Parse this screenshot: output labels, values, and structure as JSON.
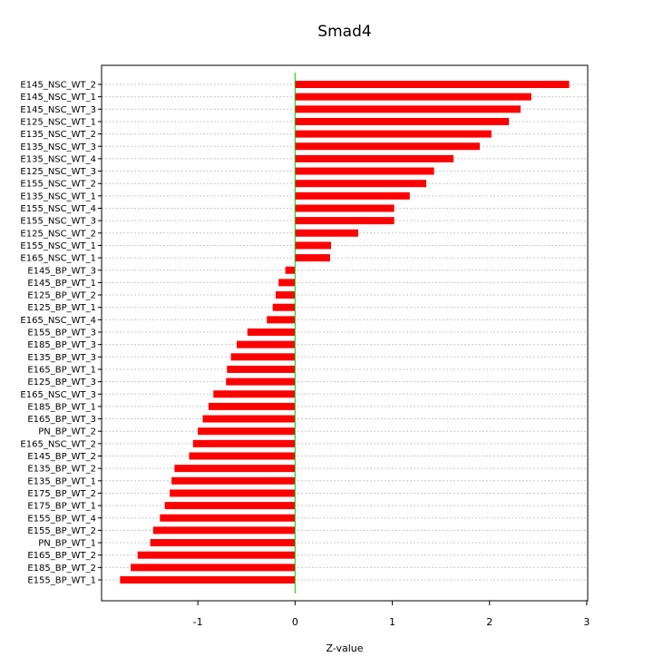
{
  "chart_data": {
    "type": "bar",
    "orientation": "horizontal",
    "title": "Smad4",
    "xlabel": "Z-value",
    "ylabel": "",
    "xlim": [
      -1.99,
      3.01
    ],
    "xticks": [
      -1,
      0,
      1,
      2,
      3
    ],
    "grid": "horizontal dashed",
    "legend": "none",
    "colors": {
      "bar": "#ff0000",
      "zero_line": "#00cc00",
      "grid": "#c8c8c8",
      "frame": "#000000"
    },
    "categories": [
      "E145_NSC_WT_2",
      "E145_NSC_WT_1",
      "E145_NSC_WT_3",
      "E125_NSC_WT_1",
      "E135_NSC_WT_2",
      "E135_NSC_WT_3",
      "E135_NSC_WT_4",
      "E125_NSC_WT_3",
      "E155_NSC_WT_2",
      "E135_NSC_WT_1",
      "E155_NSC_WT_4",
      "E155_NSC_WT_3",
      "E125_NSC_WT_2",
      "E155_NSC_WT_1",
      "E165_NSC_WT_1",
      "E145_BP_WT_3",
      "E145_BP_WT_1",
      "E125_BP_WT_2",
      "E125_BP_WT_1",
      "E165_NSC_WT_4",
      "E155_BP_WT_3",
      "E185_BP_WT_3",
      "E135_BP_WT_3",
      "E165_BP_WT_1",
      "E125_BP_WT_3",
      "E165_NSC_WT_3",
      "E185_BP_WT_1",
      "E165_BP_WT_3",
      "PN_BP_WT_2",
      "E165_NSC_WT_2",
      "E145_BP_WT_2",
      "E135_BP_WT_2",
      "E135_BP_WT_1",
      "E175_BP_WT_2",
      "E175_BP_WT_1",
      "E155_BP_WT_4",
      "E155_BP_WT_2",
      "PN_BP_WT_1",
      "E165_BP_WT_2",
      "E185_BP_WT_2",
      "E155_BP_WT_1"
    ],
    "values": [
      2.82,
      2.43,
      2.32,
      2.2,
      2.02,
      1.9,
      1.63,
      1.43,
      1.35,
      1.18,
      1.02,
      1.02,
      0.65,
      0.37,
      0.36,
      -0.1,
      -0.17,
      -0.2,
      -0.23,
      -0.29,
      -0.49,
      -0.6,
      -0.66,
      -0.7,
      -0.71,
      -0.84,
      -0.89,
      -0.95,
      -1.0,
      -1.05,
      -1.09,
      -1.24,
      -1.27,
      -1.29,
      -1.34,
      -1.39,
      -1.46,
      -1.49,
      -1.62,
      -1.69,
      -1.8
    ]
  }
}
